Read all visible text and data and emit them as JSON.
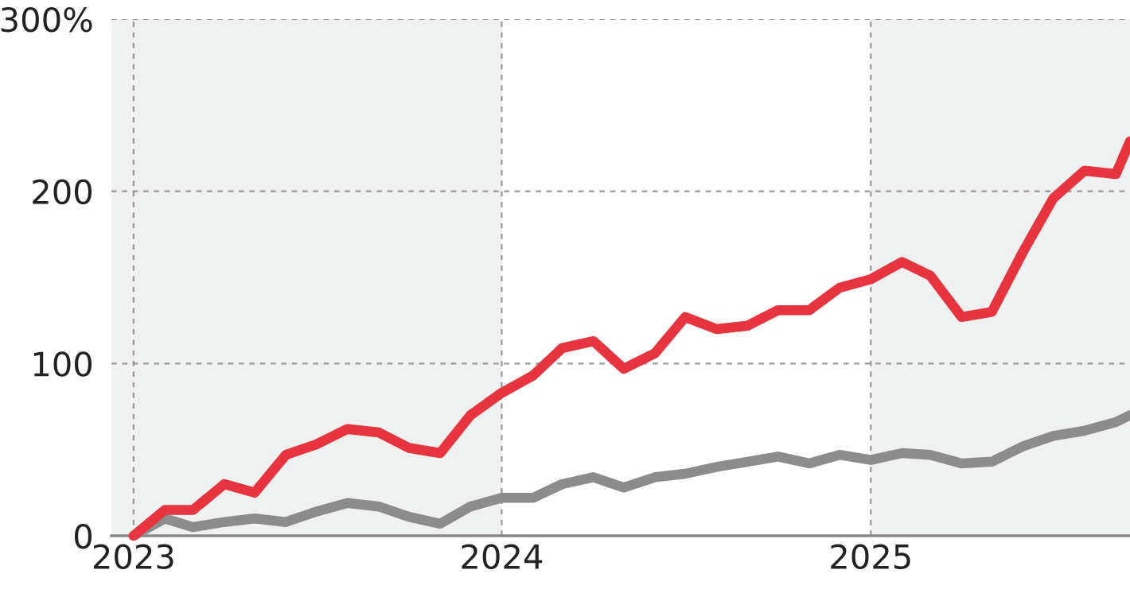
{
  "chart_data": {
    "type": "line",
    "xlim": [
      "2022-12-10",
      "2025-09-15"
    ],
    "xticks": [
      {
        "value": "2023-01-01",
        "label": "2023"
      },
      {
        "value": "2024-01-01",
        "label": "2024"
      },
      {
        "value": "2025-01-01",
        "label": "2025"
      }
    ],
    "ylim": [
      0,
      300
    ],
    "yticks": [
      {
        "value": 0,
        "label": "0"
      },
      {
        "value": 100,
        "label": "100"
      },
      {
        "value": 200,
        "label": "200"
      },
      {
        "value": 300,
        "label": "300%"
      }
    ],
    "grid": true,
    "line_style": "solid",
    "bands": [
      {
        "axis": "x",
        "from": "2022-12-10",
        "to": "2024-01-01",
        "color": "#f0f1f1"
      },
      {
        "axis": "x",
        "from": "2025-01-01",
        "to": "2025-09-15",
        "color": "#f0f1f1"
      }
    ],
    "x": [
      "2023-01",
      "2023-02",
      "2023-03",
      "2023-04",
      "2023-05",
      "2023-06",
      "2023-07",
      "2023-08",
      "2023-09",
      "2023-10",
      "2023-11",
      "2023-12",
      "2024-01",
      "2024-02",
      "2024-03",
      "2024-04",
      "2024-05",
      "2024-06",
      "2024-07",
      "2024-08",
      "2024-09",
      "2024-10",
      "2024-11",
      "2024-12",
      "2025-01",
      "2025-02",
      "2025-03",
      "2025-04",
      "2025-05",
      "2025-06",
      "2025-07",
      "2025-08",
      "2025-09",
      "2025-09-15"
    ],
    "series": [
      {
        "color": "#8c8c8c",
        "values": [
          0,
          10,
          5,
          8,
          10,
          8,
          14,
          19,
          17,
          11,
          7,
          17,
          22,
          22,
          30,
          34,
          28,
          34,
          36,
          40,
          43,
          46,
          42,
          47,
          44,
          48,
          47,
          42,
          43,
          52,
          58,
          61,
          66,
          70
        ]
      },
      {
        "color": "#e8343f",
        "values": [
          0,
          15,
          15,
          30,
          25,
          47,
          53,
          62,
          60,
          51,
          48,
          70,
          83,
          93,
          109,
          113,
          97,
          106,
          127,
          120,
          122,
          131,
          131,
          144,
          149,
          159,
          151,
          127,
          130,
          165,
          196,
          212,
          210,
          229
        ]
      }
    ]
  }
}
